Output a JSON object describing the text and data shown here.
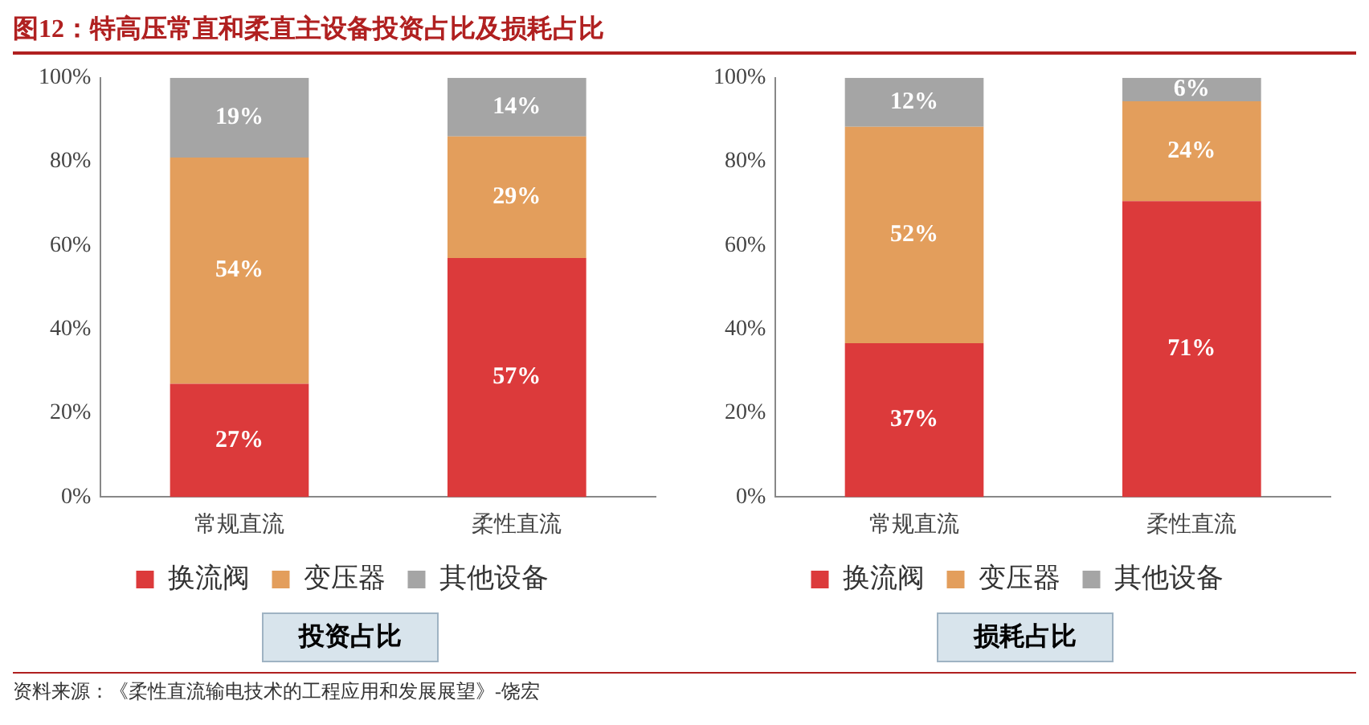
{
  "chart_data": [
    {
      "type": "bar",
      "title": "图12：特高压常直和柔直主设备投资占比及损耗占比",
      "subtitle": "投资占比",
      "categories": [
        "常规直流",
        "柔性直流"
      ],
      "stacked": true,
      "ylim": [
        0,
        100
      ],
      "yticks": [
        {
          "value": 0,
          "label": "0%"
        },
        {
          "value": 20,
          "label": "20%"
        },
        {
          "value": 40,
          "label": "40%"
        },
        {
          "value": 60,
          "label": "60%"
        },
        {
          "value": 80,
          "label": "80%"
        },
        {
          "value": 100,
          "label": "100%"
        }
      ],
      "grid": false,
      "legend": "bottom",
      "series": [
        {
          "name": "换流阀",
          "color": "#dc3a3b",
          "values": [
            27,
            57
          ],
          "value_labels": [
            "27%",
            "57%"
          ]
        },
        {
          "name": "变压器",
          "color": "#e39e5c",
          "values": [
            54,
            29
          ],
          "value_labels": [
            "54%",
            "29%"
          ]
        },
        {
          "name": "其他设备",
          "color": "#a5a5a5",
          "values": [
            19,
            14
          ],
          "value_labels": [
            "19%",
            "14%"
          ]
        }
      ]
    },
    {
      "type": "bar",
      "subtitle": "损耗占比",
      "categories": [
        "常规直流",
        "柔性直流"
      ],
      "stacked": true,
      "ylim": [
        0,
        100
      ],
      "yticks": [
        {
          "value": 0,
          "label": "0%"
        },
        {
          "value": 20,
          "label": "20%"
        },
        {
          "value": 40,
          "label": "40%"
        },
        {
          "value": 60,
          "label": "60%"
        },
        {
          "value": 80,
          "label": "80%"
        },
        {
          "value": 100,
          "label": "100%"
        }
      ],
      "grid": false,
      "legend": "bottom",
      "annotations": [
        "资料来源：《柔性直流输电技术的工程应用和发展展望》-饶宏"
      ],
      "series": [
        {
          "name": "换流阀",
          "color": "#dc3a3b",
          "values": [
            36.7,
            70.6
          ],
          "value_labels": [
            "37%",
            "71%"
          ]
        },
        {
          "name": "变压器",
          "color": "#e39e5c",
          "values": [
            51.6,
            23.8
          ],
          "value_labels": [
            "52%",
            "24%"
          ]
        },
        {
          "name": "其他设备",
          "color": "#a5a5a5",
          "values": [
            11.7,
            5.6
          ],
          "value_labels": [
            "12%",
            "6%"
          ]
        }
      ]
    }
  ]
}
